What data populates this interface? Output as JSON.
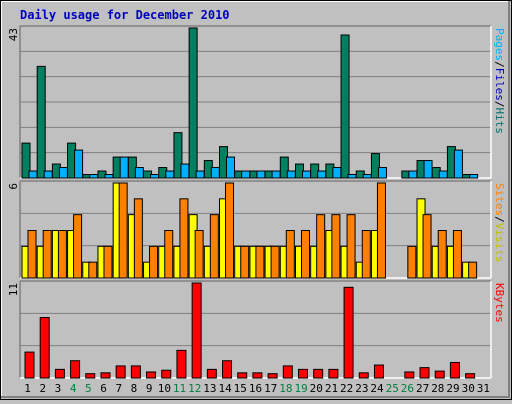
{
  "chart_data": {
    "type": "bar",
    "title": "Daily usage for December 2010",
    "categories": [
      "1",
      "2",
      "3",
      "4",
      "5",
      "6",
      "7",
      "8",
      "9",
      "10",
      "11",
      "12",
      "13",
      "14",
      "15",
      "16",
      "17",
      "18",
      "19",
      "20",
      "21",
      "22",
      "23",
      "24",
      "25",
      "26",
      "27",
      "28",
      "29",
      "30",
      "31"
    ],
    "weekend_days": [
      "4",
      "5",
      "11",
      "12",
      "18",
      "19",
      "25",
      "26"
    ],
    "panels": [
      {
        "id": "hits_files",
        "ymax_label": "43",
        "ymax": 43,
        "axis_title": [
          {
            "text": "Hits",
            "color": "#006f6f"
          },
          {
            "text": "/",
            "color": "#000000"
          },
          {
            "text": "Files",
            "color": "#0000c0"
          },
          {
            "text": "/",
            "color": "#000000"
          },
          {
            "text": "Pages",
            "color": "#00b0ff"
          }
        ],
        "series": [
          {
            "name": "Hits",
            "color": "#008060",
            "values": [
              10,
              32,
              4,
              10,
              1,
              2,
              6,
              6,
              2,
              3,
              13,
              43,
              5,
              9,
              2,
              2,
              2,
              6,
              4,
              4,
              4,
              41,
              2,
              7,
              0,
              2,
              5,
              3,
              9,
              1,
              0
            ]
          },
          {
            "name": "Files",
            "color": "#00b0ff",
            "values": [
              2,
              2,
              3,
              8,
              1,
              1,
              6,
              3,
              1,
              2,
              4,
              2,
              3,
              6,
              2,
              2,
              2,
              2,
              2,
              2,
              3,
              1,
              1,
              3,
              0,
              2,
              5,
              2,
              8,
              1,
              0
            ]
          }
        ]
      },
      {
        "id": "visits_sites",
        "ymax_label": "6",
        "ymax": 6,
        "axis_title": [
          {
            "text": "Visits",
            "color": "#c0c000"
          },
          {
            "text": "/",
            "color": "#000000"
          },
          {
            "text": "Sites",
            "color": "#ff8000"
          }
        ],
        "series": [
          {
            "name": "Visits",
            "color": "#ffff00",
            "values": [
              2,
              2,
              3,
              3,
              1,
              2,
              6,
              4,
              1,
              2,
              2,
              4,
              2,
              5,
              2,
              2,
              2,
              2,
              2,
              2,
              3,
              2,
              1,
              3,
              0,
              0,
              5,
              2,
              2,
              1,
              0
            ]
          },
          {
            "name": "Sites",
            "color": "#ff8000",
            "values": [
              3,
              3,
              3,
              4,
              1,
              2,
              6,
              5,
              2,
              3,
              5,
              3,
              4,
              6,
              2,
              2,
              2,
              3,
              3,
              4,
              4,
              4,
              3,
              6,
              0,
              2,
              4,
              3,
              3,
              1,
              0
            ]
          }
        ]
      },
      {
        "id": "kbytes",
        "ymax_label": "11",
        "ymax": 11,
        "axis_title": [
          {
            "text": "KBytes",
            "color": "#ff0000"
          }
        ],
        "series": [
          {
            "name": "KBytes",
            "color": "#ff0000",
            "values": [
              3,
              7,
              1,
              2,
              0.5,
              0.6,
              1.4,
              1.4,
              0.7,
              0.9,
              3.2,
              11,
              1,
              2,
              0.6,
              0.6,
              0.5,
              1.4,
              1,
              1,
              1,
              10.5,
              0.6,
              1.5,
              0,
              0.7,
              1.2,
              0.8,
              1.8,
              0.5,
              0
            ]
          }
        ]
      }
    ]
  }
}
